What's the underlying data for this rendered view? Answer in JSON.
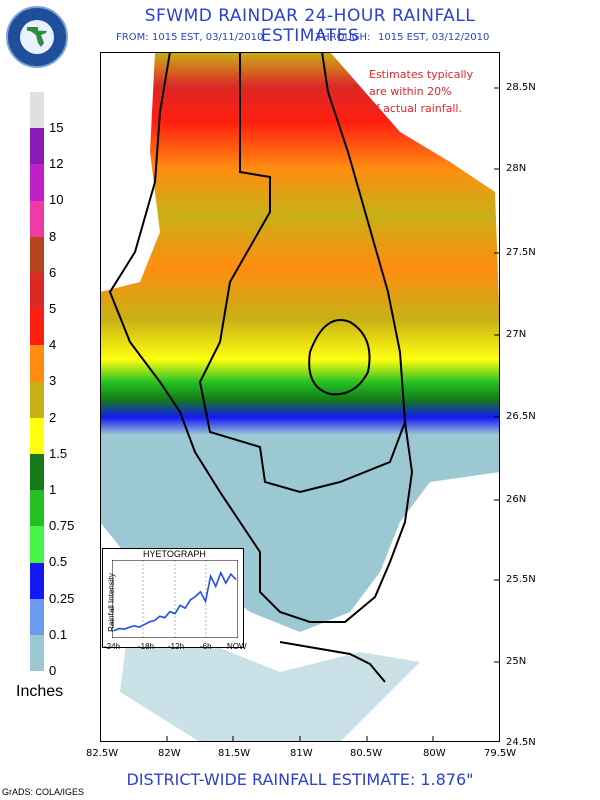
{
  "header": {
    "title": "SFWMD RAINDAR 24-HOUR RAINFALL ESTIMATES",
    "from_label": "FROM:",
    "from_value": "1015 EST, 03/11/2010",
    "through_label": "THROUGH:",
    "through_value": "1015 EST, 03/12/2010",
    "logo_text": "South Florida Water Management District"
  },
  "note": [
    "Estimates typically",
    "are within 20%",
    "of actual rainfall."
  ],
  "legend": {
    "units": "Inches",
    "items": [
      {
        "label": "15",
        "color": "#e0e0e0"
      },
      {
        "label": "12",
        "color": "#8a1ab5"
      },
      {
        "label": "10",
        "color": "#c020c8"
      },
      {
        "label": "8",
        "color": "#f03aa8"
      },
      {
        "label": "6",
        "color": "#b6461e"
      },
      {
        "label": "5",
        "color": "#dc2826"
      },
      {
        "label": "4",
        "color": "#ff1e10"
      },
      {
        "label": "3",
        "color": "#ff8c10"
      },
      {
        "label": "2",
        "color": "#c8b016"
      },
      {
        "label": "1.5",
        "color": "#ffff10"
      },
      {
        "label": "1",
        "color": "#137a17"
      },
      {
        "label": "0.75",
        "color": "#24c024"
      },
      {
        "label": "0.5",
        "color": "#46f446"
      },
      {
        "label": "0.25",
        "color": "#1418f4"
      },
      {
        "label": "0.1",
        "color": "#6c9cf0"
      },
      {
        "label": "0",
        "color": "#9cc8d4"
      }
    ]
  },
  "axes": {
    "lat_labels": [
      "28.5N",
      "28N",
      "27.5N",
      "27N",
      "26.5N",
      "26N",
      "25.5N",
      "25N",
      "24.5N"
    ],
    "lon_labels": [
      "82.5W",
      "82W",
      "81.5W",
      "81W",
      "80.5W",
      "80W",
      "79.5W"
    ]
  },
  "hyetograph": {
    "title": "HYETOGRAPH",
    "ylabel": "Rainfall Intensity",
    "x_labels": [
      "-24h",
      "-18h",
      "-12h",
      "-6h",
      "NOW"
    ],
    "line_color": "#1f4ff0",
    "series": [
      0.05,
      0.08,
      0.07,
      0.1,
      0.12,
      0.1,
      0.14,
      0.18,
      0.2,
      0.26,
      0.24,
      0.33,
      0.3,
      0.42,
      0.38,
      0.5,
      0.55,
      0.62,
      0.48,
      0.85,
      0.7,
      0.9,
      0.75,
      0.88,
      0.8
    ]
  },
  "footer": {
    "label": "DISTRICT-WIDE RAINFALL ESTIMATE:",
    "value": "1.876\""
  },
  "credit": "GrADS: COLA/IGES"
}
